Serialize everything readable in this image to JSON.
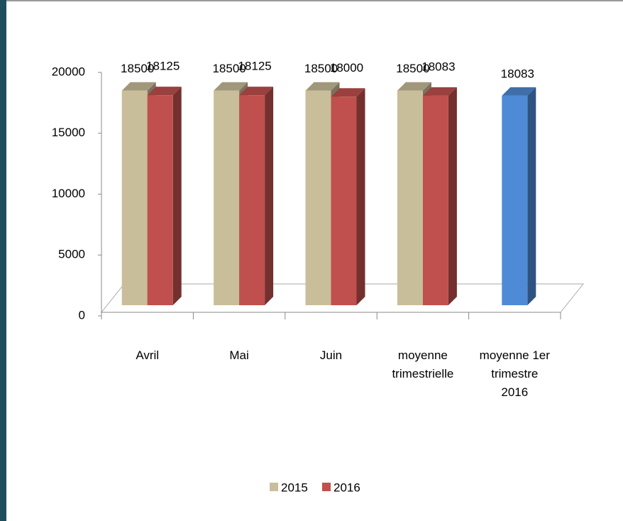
{
  "chart_data": {
    "type": "bar3d",
    "categories": [
      "Avril",
      "Mai",
      "Juin",
      "moyenne trimestrielle",
      "moyenne 1er trimestre 2016"
    ],
    "series": [
      {
        "name": "2015",
        "color": "#c9be9a",
        "values": [
          18500,
          18500,
          18500,
          18500,
          null
        ]
      },
      {
        "name": "2016",
        "color": "#c0504d",
        "values": [
          18125,
          18125,
          18000,
          18083,
          null
        ]
      },
      {
        "color": "#4f8ad6",
        "values": [
          null,
          null,
          null,
          null,
          18083
        ]
      }
    ],
    "ylim": [
      0,
      20000
    ],
    "yticks": [
      0,
      5000,
      10000,
      15000,
      20000
    ]
  }
}
